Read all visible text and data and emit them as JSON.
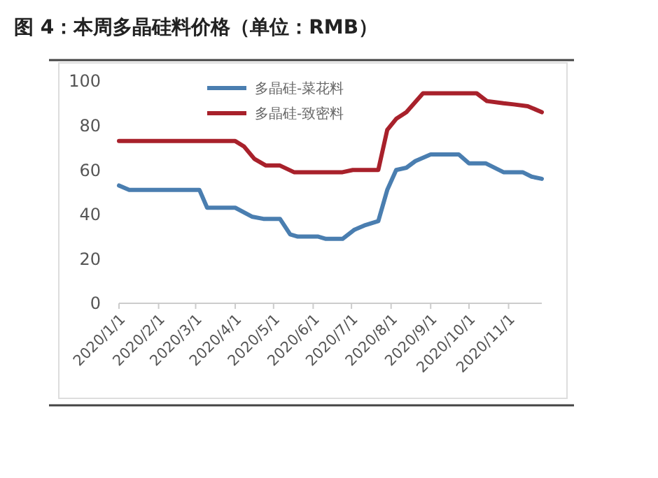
{
  "chart_data": {
    "type": "line",
    "title": "图 4：本周多晶硅料价格（单位：RMB）",
    "xlim": [
      "2020-01-01",
      "2020-11-27"
    ],
    "xticks": [
      {
        "value": "2020-01-01",
        "label": "2020/1/1"
      },
      {
        "value": "2020-02-01",
        "label": "2020/2/1"
      },
      {
        "value": "2020-03-01",
        "label": "2020/3/1"
      },
      {
        "value": "2020-04-01",
        "label": "2020/4/1"
      },
      {
        "value": "2020-05-01",
        "label": "2020/5/1"
      },
      {
        "value": "2020-06-01",
        "label": "2020/6/1"
      },
      {
        "value": "2020-07-01",
        "label": "2020/7/1"
      },
      {
        "value": "2020-08-01",
        "label": "2020/8/1"
      },
      {
        "value": "2020-09-01",
        "label": "2020/9/1"
      },
      {
        "value": "2020-10-01",
        "label": "2020/10/1"
      },
      {
        "value": "2020-11-01",
        "label": "2020/11/1"
      }
    ],
    "ylim": [
      0,
      100
    ],
    "yticks": [
      0,
      20,
      40,
      60,
      80,
      100
    ],
    "grid": false,
    "legend": "top",
    "marker": "none",
    "line_style": "solid",
    "series": [
      {
        "name": "多晶硅-菜花料",
        "color": "#4a7eb0",
        "x": [
          "2020-01-01",
          "2020-01-09",
          "2020-03-04",
          "2020-03-10",
          "2020-04-01",
          "2020-04-14",
          "2020-04-23",
          "2020-05-06",
          "2020-05-14",
          "2020-05-20",
          "2020-06-05",
          "2020-06-11",
          "2020-06-24",
          "2020-07-03",
          "2020-07-11",
          "2020-07-22",
          "2020-07-29",
          "2020-08-05",
          "2020-08-13",
          "2020-08-20",
          "2020-09-01",
          "2020-09-23",
          "2020-10-01",
          "2020-10-14",
          "2020-10-28",
          "2020-11-12",
          "2020-11-19",
          "2020-11-27"
        ],
        "values": [
          53,
          51,
          51,
          43,
          43,
          39,
          38,
          38,
          31,
          30,
          30,
          29,
          29,
          33,
          35,
          37,
          51,
          60,
          61,
          64,
          67,
          67,
          63,
          63,
          59,
          59,
          57,
          56
        ]
      },
      {
        "name": "多晶硅-致密料",
        "color": "#a8212b",
        "x": [
          "2020-01-01",
          "2020-04-01",
          "2020-04-08",
          "2020-04-16",
          "2020-04-25",
          "2020-05-06",
          "2020-05-17",
          "2020-06-24",
          "2020-07-02",
          "2020-07-22",
          "2020-07-29",
          "2020-08-05",
          "2020-08-13",
          "2020-08-26",
          "2020-10-07",
          "2020-10-15",
          "2020-10-28",
          "2020-11-05",
          "2020-11-16",
          "2020-11-27"
        ],
        "values": [
          73,
          73,
          70.5,
          65,
          62,
          62,
          59,
          59,
          60,
          60,
          78,
          83,
          86,
          94.5,
          94.5,
          91,
          90,
          89.5,
          88.7,
          86
        ]
      }
    ]
  }
}
